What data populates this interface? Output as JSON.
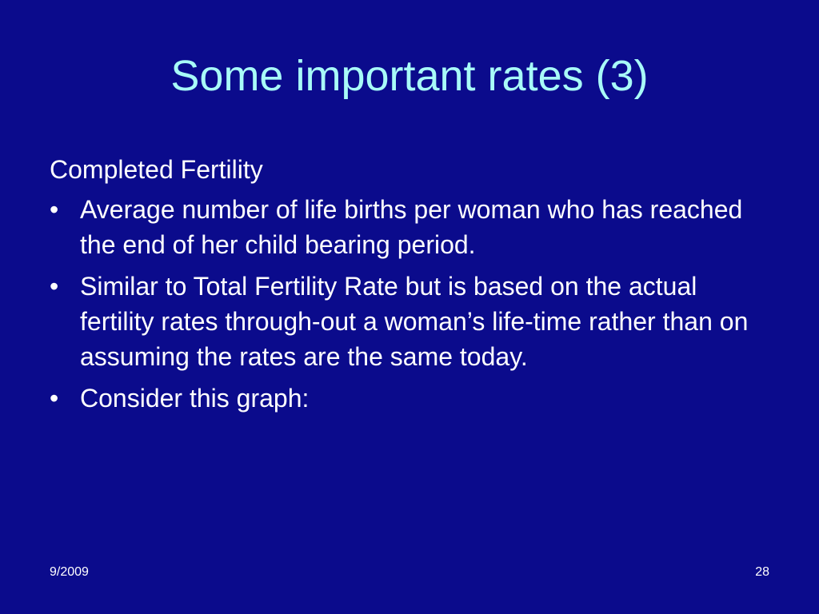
{
  "slide": {
    "title": "Some important rates (3)",
    "heading": "Completed Fertility",
    "bullets": [
      "Average number of life births per woman who has reached the end of her child bearing period.",
      "Similar to Total Fertility Rate but is based on the actual fertility rates through-out a woman’s life-time rather than on assuming the rates are the same today.",
      "Consider this graph:"
    ],
    "bullet_symbol": "•",
    "footer_date": "9/2009",
    "page_number": "28"
  },
  "colors": {
    "background": "#0b0b8c",
    "title": "#a8fbf8",
    "text": "#ffffff"
  }
}
